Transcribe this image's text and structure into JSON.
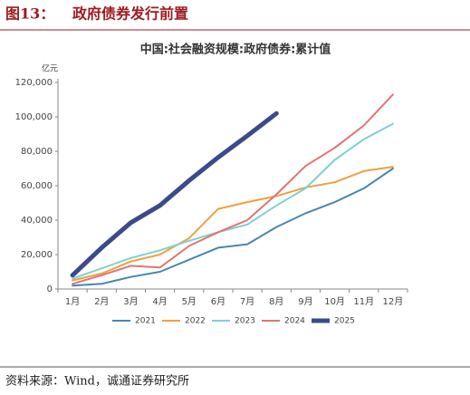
{
  "header": {
    "label": "图13：",
    "title": "政府债券发行前置"
  },
  "chart_data": {
    "type": "line",
    "title": "中国:社会融资规模:政府债券:累计值",
    "y_unit": "亿元",
    "categories": [
      "1月",
      "2月",
      "3月",
      "4月",
      "5月",
      "6月",
      "7月",
      "8月",
      "9月",
      "10月",
      "11月",
      "12月"
    ],
    "series": [
      {
        "name": "2021",
        "color": "#4a86b0",
        "line_width": 2,
        "values": [
          2000,
          3000,
          7000,
          10000,
          17000,
          24000,
          26000,
          36000,
          44000,
          50500,
          58500,
          70000
        ]
      },
      {
        "name": "2022",
        "color": "#f0a040",
        "line_width": 2,
        "values": [
          5000,
          9000,
          16000,
          20000,
          29500,
          46500,
          50500,
          54000,
          59000,
          62000,
          68500,
          71000
        ]
      },
      {
        "name": "2023",
        "color": "#7fd0d0",
        "line_width": 2,
        "values": [
          6000,
          12000,
          18000,
          22500,
          28000,
          33000,
          37500,
          48500,
          58500,
          75000,
          87000,
          96000
        ]
      },
      {
        "name": "2024",
        "color": "#e07474",
        "line_width": 2,
        "values": [
          3000,
          8000,
          13500,
          12500,
          25000,
          33000,
          40000,
          55000,
          71500,
          82000,
          95000,
          113000
        ]
      },
      {
        "name": "2025",
        "color": "#3c4a8c",
        "line_width": 5,
        "values": [
          8000,
          24000,
          38500,
          48500,
          63000,
          76500,
          89000,
          102000,
          null,
          null,
          null,
          null
        ]
      }
    ],
    "ylim": [
      0,
      120000
    ],
    "yticks": [
      0,
      {
        "value": 20000,
        "label": "20,000"
      },
      {
        "value": 40000,
        "label": "40,000"
      },
      {
        "value": 60000,
        "label": "60,000"
      },
      {
        "value": 80000,
        "label": "80,000"
      },
      {
        "value": 100000,
        "label": "100,000"
      },
      {
        "value": 120000,
        "label": "120,000"
      }
    ],
    "legend": "bottom"
  },
  "source": "资料来源：Wind，诚通证券研究所"
}
